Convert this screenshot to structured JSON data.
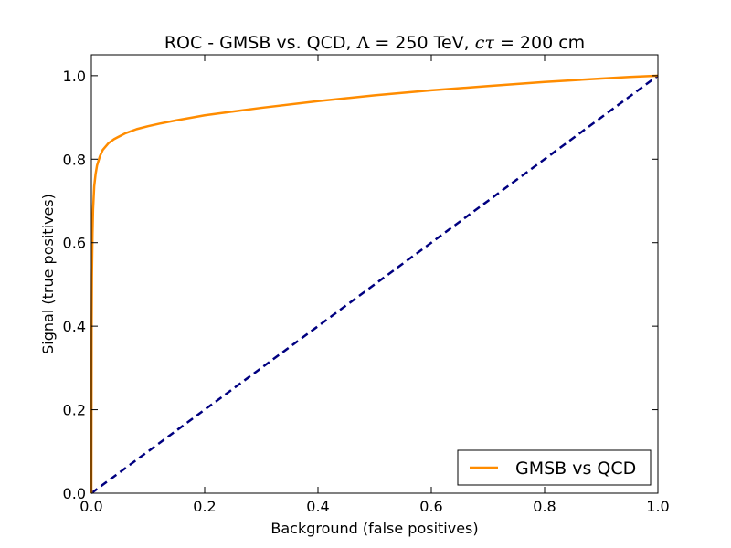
{
  "chart_data": {
    "type": "line",
    "title": {
      "prefix": "ROC - GMSB vs. QCD, ",
      "lambda_symbol": "Λ",
      "lambda_value": " = 250 TeV, ",
      "ctau_symbol": "cτ",
      "ctau_value": " = 200 cm"
    },
    "xlabel": "Background (false positives)",
    "ylabel": "Signal (true positives)",
    "xlim": [
      0.0,
      1.0
    ],
    "ylim": [
      0.0,
      1.05
    ],
    "xticks": [
      0.0,
      0.2,
      0.4,
      0.6,
      0.8,
      1.0
    ],
    "yticks": [
      0.0,
      0.2,
      0.4,
      0.6,
      0.8,
      1.0
    ],
    "xtick_labels": [
      "0.0",
      "0.2",
      "0.4",
      "0.6",
      "0.8",
      "1.0"
    ],
    "ytick_labels": [
      "0.0",
      "0.2",
      "0.4",
      "0.6",
      "0.8",
      "1.0"
    ],
    "grid": false,
    "legend_position": "lower-right",
    "series": [
      {
        "name": "GMSB vs QCD",
        "color": "#ff8c00",
        "style": "solid",
        "x": [
          0.0,
          0.0005,
          0.001,
          0.002,
          0.003,
          0.005,
          0.0075,
          0.01,
          0.015,
          0.02,
          0.03,
          0.04,
          0.05,
          0.06,
          0.08,
          0.1,
          0.12,
          0.15,
          0.2,
          0.25,
          0.3,
          0.4,
          0.5,
          0.6,
          0.7,
          0.8,
          0.9,
          0.95,
          1.0
        ],
        "y": [
          0.0,
          0.4,
          0.52,
          0.62,
          0.68,
          0.735,
          0.765,
          0.785,
          0.807,
          0.822,
          0.838,
          0.848,
          0.855,
          0.862,
          0.872,
          0.879,
          0.885,
          0.893,
          0.905,
          0.914,
          0.923,
          0.939,
          0.953,
          0.965,
          0.975,
          0.985,
          0.993,
          0.997,
          1.0
        ]
      },
      {
        "name": "",
        "color": "#000080",
        "style": "dashed",
        "x": [
          0.0,
          1.0
        ],
        "y": [
          0.0,
          1.0
        ]
      }
    ]
  }
}
